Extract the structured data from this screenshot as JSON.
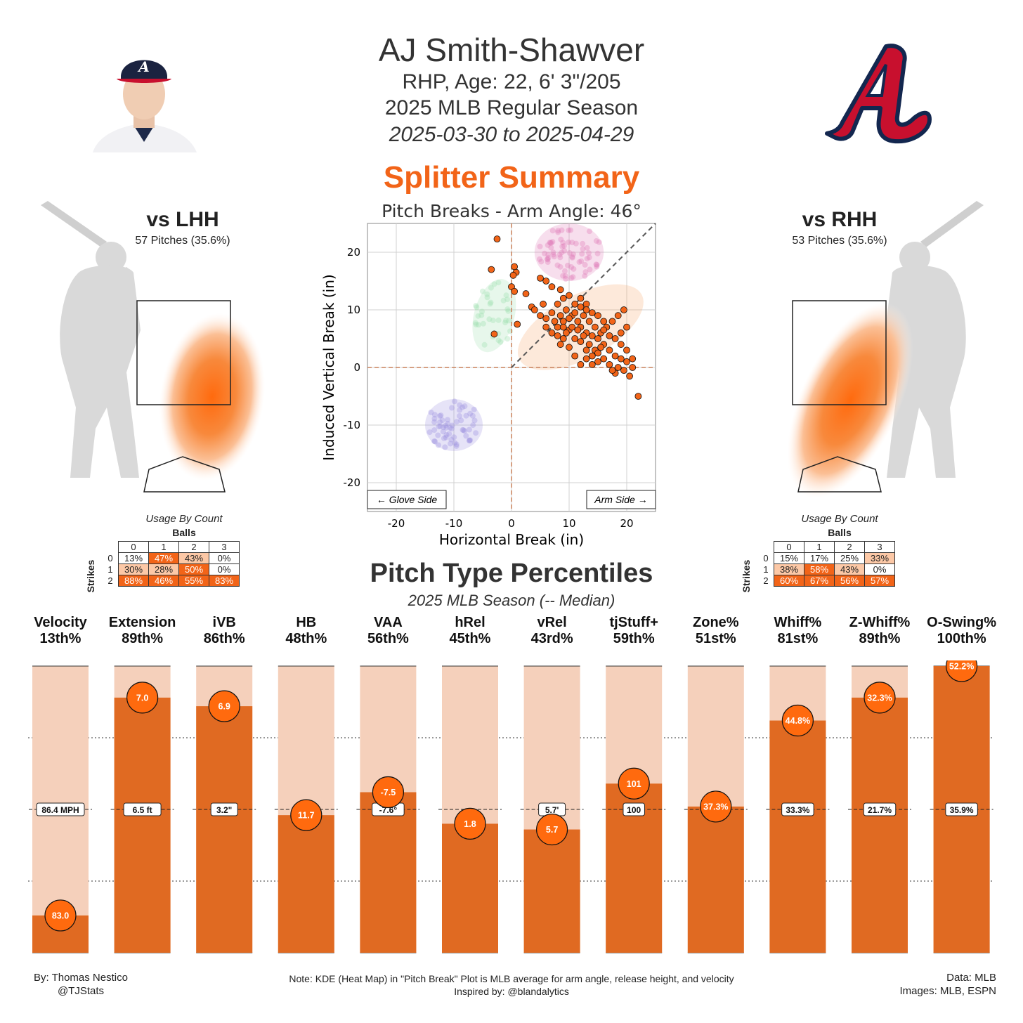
{
  "header": {
    "player_name": "AJ Smith-Shawver",
    "bio": "RHP, Age: 22, 6' 3\"/205",
    "season": "2025 MLB Regular Season",
    "dates": "2025-03-30 to 2025-04-29",
    "summary_title": "Splitter Summary"
  },
  "break_plot": {
    "title": "Pitch Breaks - Arm Angle: 46°",
    "xlabel": "Horizontal Break (in)",
    "ylabel": "Induced Vertical Break (in)",
    "glove_side_label": "← Glove Side",
    "arm_side_label": "Arm Side →",
    "x_ticks": [
      -20,
      -10,
      0,
      10,
      20
    ],
    "y_ticks": [
      -20,
      -10,
      0,
      10,
      20
    ],
    "splitter_color": "#f26418"
  },
  "lhh": {
    "title": "vs LHH",
    "pitches": "57 Pitches (35.6%)"
  },
  "rhh": {
    "title": "vs RHH",
    "pitches": "53 Pitches (35.6%)"
  },
  "usage": {
    "title": "Usage By Count",
    "balls_label": "Balls",
    "strikes_label": "Strikes",
    "cols": [
      "0",
      "1",
      "2",
      "3"
    ],
    "rows": [
      "0",
      "1",
      "2"
    ],
    "lhh": [
      [
        "13%",
        "47%",
        "43%",
        "0%"
      ],
      [
        "30%",
        "28%",
        "50%",
        "0%"
      ],
      [
        "88%",
        "46%",
        "55%",
        "83%"
      ]
    ],
    "rhh": [
      [
        "15%",
        "17%",
        "25%",
        "33%"
      ],
      [
        "38%",
        "58%",
        "43%",
        "0%"
      ],
      [
        "60%",
        "67%",
        "56%",
        "57%"
      ]
    ]
  },
  "percentiles": {
    "title": "Pitch Type Percentiles",
    "subtitle": "2025 MLB Season (-- Median)"
  },
  "chart_data": {
    "type": "bar",
    "ylim": [
      0,
      100
    ],
    "median_line": 50,
    "categories": [
      "Velocity",
      "Extension",
      "iVB",
      "HB",
      "VAA",
      "hRel",
      "vRel",
      "tjStuff+",
      "Zone%",
      "Whiff%",
      "Z-Whiff%",
      "O-Swing%"
    ],
    "percentile_labels": [
      "13th%",
      "89th%",
      "86th%",
      "48th%",
      "56th%",
      "45th%",
      "43rd%",
      "59th%",
      "51st%",
      "81st%",
      "89th%",
      "100th%"
    ],
    "values": [
      13,
      89,
      86,
      48,
      56,
      45,
      43,
      59,
      51,
      81,
      89,
      100
    ],
    "player_values": [
      "83.0",
      "7.0",
      "6.9",
      "11.7",
      "-7.5",
      "1.8",
      "5.7",
      "101",
      "37.3%",
      "44.8%",
      "32.3%",
      "52.2%"
    ],
    "median_values": [
      "86.4 MPH",
      "6.5 ft",
      "3.2\"",
      "",
      "-7.6°",
      "",
      "5.7'",
      "100",
      "",
      "33.3%",
      "21.7%",
      "35.9%"
    ],
    "bar_color": "#e06a22",
    "bg_color": "#f5d0bb",
    "marker_color": "#ff6a0e"
  },
  "footer": {
    "by": "By: Thomas Nestico",
    "handle": "@TJStats",
    "note": "Note: KDE (Heat Map) in \"Pitch Break\" Plot is MLB average for arm angle, release height, and velocity",
    "inspired": "Inspired by: @blandalytics",
    "data": "Data: MLB",
    "images": "Images: MLB, ESPN"
  }
}
